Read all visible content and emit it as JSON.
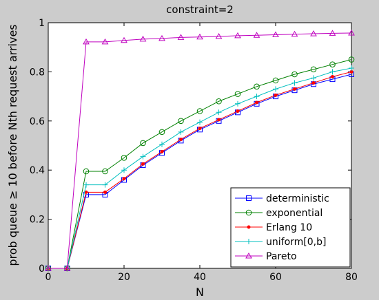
{
  "chart_data": {
    "type": "line",
    "title": "constraint=2",
    "xlabel": "N",
    "ylabel": "prob queue ≥ 10 before Nth request arrives",
    "xlim": [
      0,
      80
    ],
    "ylim": [
      0,
      1
    ],
    "xticks": [
      0,
      20,
      40,
      60,
      80
    ],
    "yticks": [
      0,
      0.2,
      0.4,
      0.6,
      0.8,
      1
    ],
    "xtick_labels": [
      "0",
      "20",
      "40",
      "60",
      "80"
    ],
    "ytick_labels": [
      "0",
      "0.2",
      "0.4",
      "0.6",
      "0.8",
      "1"
    ],
    "grid": false,
    "legend_position": "bottom-right",
    "x": [
      0,
      5,
      10,
      15,
      20,
      25,
      30,
      35,
      40,
      45,
      50,
      55,
      60,
      65,
      70,
      75,
      80
    ],
    "series": [
      {
        "name": "deterministic",
        "color": "#0000ff",
        "marker": "square",
        "values": [
          0,
          0,
          0.3,
          0.3,
          0.36,
          0.42,
          0.47,
          0.52,
          0.565,
          0.6,
          0.635,
          0.67,
          0.7,
          0.725,
          0.75,
          0.77,
          0.79
        ]
      },
      {
        "name": "exponential",
        "color": "#008000",
        "marker": "circle",
        "values": [
          0,
          0,
          0.395,
          0.395,
          0.45,
          0.51,
          0.555,
          0.6,
          0.64,
          0.68,
          0.71,
          0.74,
          0.765,
          0.79,
          0.81,
          0.83,
          0.85
        ]
      },
      {
        "name": "Erlang 10",
        "color": "#ff0000",
        "marker": "dot",
        "values": [
          0,
          0,
          0.31,
          0.31,
          0.365,
          0.425,
          0.475,
          0.525,
          0.57,
          0.605,
          0.64,
          0.675,
          0.705,
          0.73,
          0.755,
          0.78,
          0.8
        ]
      },
      {
        "name": "uniform[0,b]",
        "color": "#00bfbf",
        "marker": "plus",
        "values": [
          0,
          0,
          0.34,
          0.34,
          0.4,
          0.455,
          0.505,
          0.555,
          0.595,
          0.635,
          0.67,
          0.7,
          0.73,
          0.755,
          0.775,
          0.8,
          0.815
        ]
      },
      {
        "name": "Pareto",
        "color": "#bf00bf",
        "marker": "triangle",
        "values": [
          0,
          0,
          0.922,
          0.922,
          0.928,
          0.933,
          0.936,
          0.94,
          0.942,
          0.944,
          0.947,
          0.949,
          0.951,
          0.953,
          0.955,
          0.957,
          0.958
        ]
      }
    ]
  }
}
